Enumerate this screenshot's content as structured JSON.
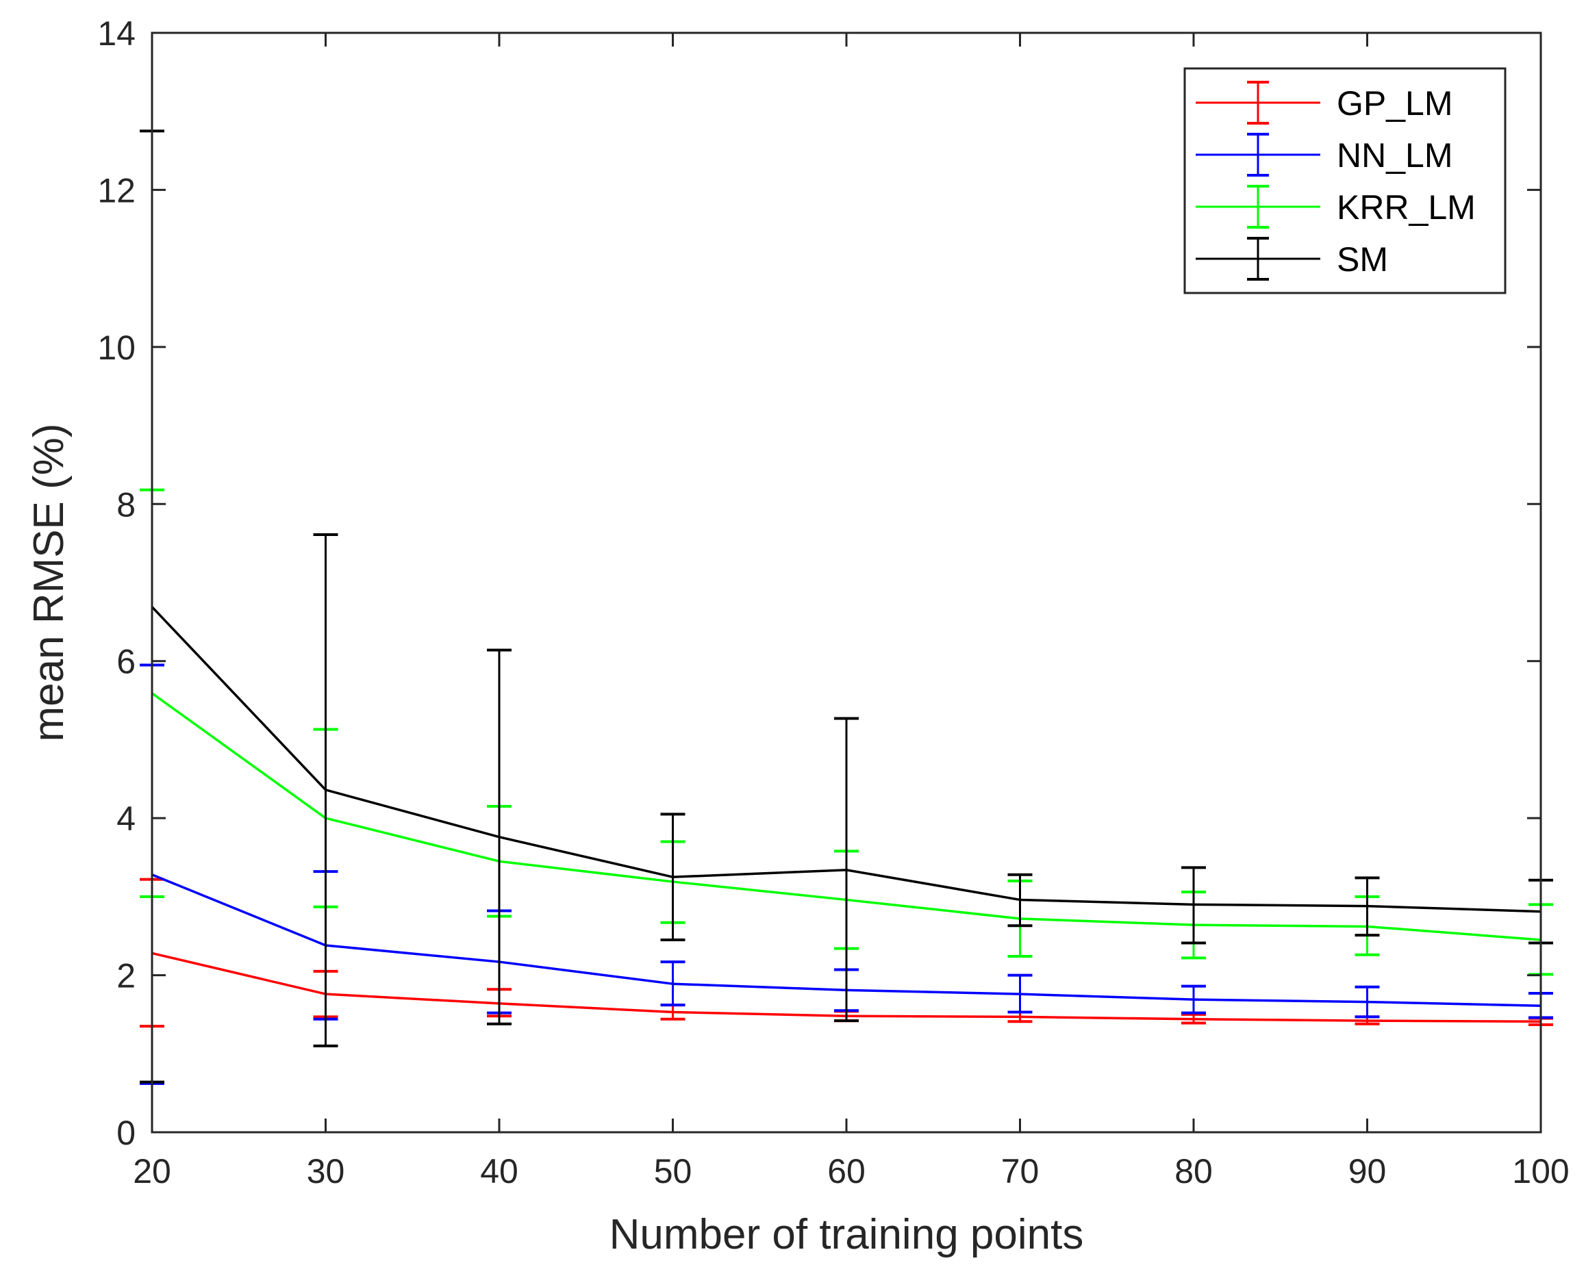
{
  "chart_data": {
    "type": "line",
    "title": "",
    "xlabel": "Number of training points",
    "ylabel": "mean RMSE (%)",
    "x": [
      20,
      30,
      40,
      50,
      60,
      70,
      80,
      90,
      100
    ],
    "xlim": [
      20,
      100
    ],
    "ylim": [
      0,
      14
    ],
    "xticks": [
      20,
      30,
      40,
      50,
      60,
      70,
      80,
      90,
      100
    ],
    "yticks": [
      0,
      2,
      4,
      6,
      8,
      10,
      12,
      14
    ],
    "grid": false,
    "legend_position": "top-right",
    "error_bars": true,
    "series": [
      {
        "name": "GP_LM",
        "color": "#ff0000",
        "values": [
          2.28,
          1.76,
          1.64,
          1.53,
          1.48,
          1.47,
          1.44,
          1.42,
          1.41
        ],
        "lower": [
          1.35,
          1.47,
          1.48,
          1.44,
          1.42,
          1.41,
          1.39,
          1.38,
          1.37
        ],
        "upper": [
          3.22,
          2.05,
          1.82,
          1.62,
          1.54,
          1.53,
          1.5,
          1.47,
          1.45
        ]
      },
      {
        "name": "NN_LM",
        "color": "#0000ff",
        "values": [
          3.28,
          2.38,
          2.17,
          1.89,
          1.81,
          1.76,
          1.69,
          1.66,
          1.61
        ],
        "lower": [
          0.62,
          1.44,
          1.52,
          1.62,
          1.55,
          1.53,
          1.52,
          1.47,
          1.46
        ],
        "upper": [
          5.95,
          3.32,
          2.82,
          2.17,
          2.07,
          2.0,
          1.86,
          1.85,
          1.77
        ]
      },
      {
        "name": "KRR_LM",
        "color": "#00ff00",
        "values": [
          5.59,
          4.0,
          3.45,
          3.19,
          2.96,
          2.72,
          2.64,
          2.62,
          2.45
        ],
        "lower": [
          3.0,
          2.87,
          2.75,
          2.67,
          2.34,
          2.24,
          2.22,
          2.26,
          2.01
        ],
        "upper": [
          8.18,
          5.13,
          4.15,
          3.7,
          3.58,
          3.2,
          3.06,
          3.0,
          2.9
        ]
      },
      {
        "name": "SM",
        "color": "#000000",
        "values": [
          6.69,
          4.36,
          3.76,
          3.25,
          3.34,
          2.96,
          2.9,
          2.88,
          2.81
        ],
        "lower": [
          0.64,
          1.1,
          1.38,
          2.45,
          1.42,
          2.63,
          2.41,
          2.51,
          2.41
        ],
        "upper": [
          12.75,
          7.61,
          6.14,
          4.05,
          5.27,
          3.28,
          3.37,
          3.24,
          3.21
        ]
      }
    ]
  }
}
